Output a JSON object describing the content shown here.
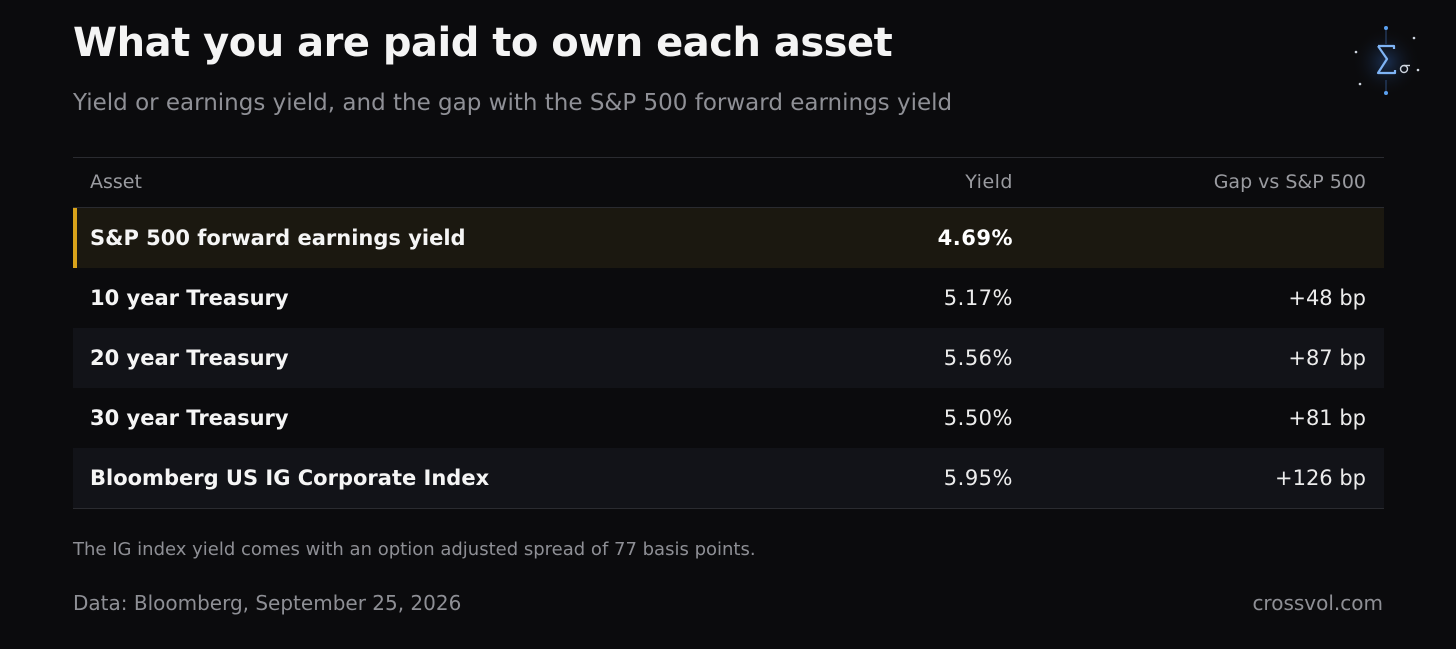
{
  "title": "What you are paid to own each asset",
  "subtitle": "Yield or earnings yield, and the gap with the S&P 500 forward earnings yield",
  "chart_data": {
    "type": "table",
    "columns": [
      "Asset",
      "Yield",
      "Gap vs S&P 500"
    ],
    "rows": [
      {
        "asset": "S&P 500 forward earnings yield",
        "yield": "4.69%",
        "gap": "",
        "highlight": true
      },
      {
        "asset": "10 year Treasury",
        "yield": "5.17%",
        "gap": "+48 bp",
        "highlight": false
      },
      {
        "asset": "20 year Treasury",
        "yield": "5.56%",
        "gap": "+87 bp",
        "highlight": false
      },
      {
        "asset": "30 year Treasury",
        "yield": "5.50%",
        "gap": "+81 bp",
        "highlight": false
      },
      {
        "asset": "Bloomberg US IG Corporate Index",
        "yield": "5.95%",
        "gap": "+126 bp",
        "highlight": false
      }
    ]
  },
  "footnote": "The IG index yield comes with an option adjusted spread of 77 basis points.",
  "source": "Data: Bloomberg, September 25, 2026",
  "credit": "crossvol.com",
  "colors": {
    "background": "#0b0b0d",
    "highlight_accent": "#d8a21a",
    "highlight_row": "#1b1810",
    "logo_accent": "#5aa0f0"
  },
  "logo": {
    "icon": "sigma-logo-icon",
    "glyphs": "∑σ"
  }
}
